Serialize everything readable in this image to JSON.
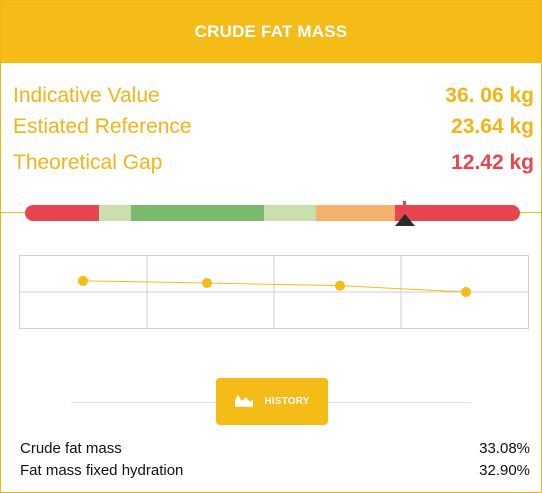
{
  "header": {
    "title": "CRUDE FAT MASS"
  },
  "metrics": {
    "indicative": {
      "label": "Indicative Value",
      "value": "36. 06 kg"
    },
    "reference": {
      "label": "Estiated Reference",
      "value": "23.64 kg"
    },
    "gap": {
      "label": "Theoretical Gap",
      "value": "12.42 kg"
    }
  },
  "scale": {
    "segment_colors": [
      "#e8464e",
      "#c9dfae",
      "#79bb6a",
      "#c9dfae",
      "#f6b26d",
      "#e8464e"
    ],
    "pointer_level_fraction": 0.767
  },
  "chart_data": {
    "type": "line",
    "x": [
      1,
      2,
      3,
      4
    ],
    "series": [
      {
        "values": [
          4.55,
          4.35,
          4.1,
          3.5
        ]
      }
    ],
    "ylim": [
      0,
      7
    ],
    "grid": true,
    "color": "#f5bb17"
  },
  "history_button": {
    "label": "HISTORY",
    "icon": "area-chart-icon"
  },
  "stats": [
    {
      "label": "Crude fat mass",
      "value": "33.08%"
    },
    {
      "label": "Fat mass fixed hydration",
      "value": "32.90%"
    }
  ],
  "colors": {
    "accent": "#f5bb17",
    "alert": "#e8464e"
  }
}
